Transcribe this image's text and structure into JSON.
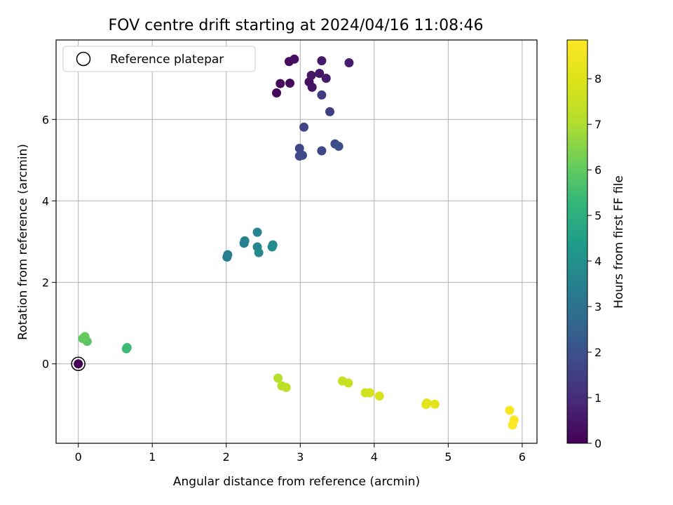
{
  "chart_data": {
    "type": "scatter",
    "title": "FOV centre drift starting at 2024/04/16 11:08:46",
    "xlabel": "Angular distance from reference (arcmin)",
    "ylabel": "Rotation from reference (arcmin)",
    "xlim": [
      -0.3,
      6.2
    ],
    "ylim": [
      -1.95,
      7.95
    ],
    "xticks": [
      0,
      1,
      2,
      3,
      4,
      5,
      6
    ],
    "yticks": [
      0,
      2,
      4,
      6
    ],
    "grid": true,
    "legend": {
      "location": "upper-left",
      "entries": [
        "Reference platepar"
      ]
    },
    "reference_point": {
      "x": 0,
      "y": 0
    },
    "colorbar": {
      "label": "Hours from first FF file",
      "colormap": "viridis",
      "range": [
        0,
        8.85
      ],
      "ticks": [
        0,
        1,
        2,
        3,
        4,
        5,
        6,
        7,
        8
      ]
    },
    "points": [
      {
        "x": 0.0,
        "y": 0.0,
        "h": 0.05
      },
      {
        "x": 2.68,
        "y": 6.65,
        "h": 0.1
      },
      {
        "x": 2.73,
        "y": 6.88,
        "h": 0.15
      },
      {
        "x": 2.86,
        "y": 6.89,
        "h": 0.2
      },
      {
        "x": 2.85,
        "y": 7.42,
        "h": 0.25
      },
      {
        "x": 2.92,
        "y": 7.48,
        "h": 0.3
      },
      {
        "x": 3.12,
        "y": 6.92,
        "h": 0.35
      },
      {
        "x": 3.16,
        "y": 6.79,
        "h": 0.4
      },
      {
        "x": 3.15,
        "y": 7.08,
        "h": 0.45
      },
      {
        "x": 3.26,
        "y": 7.13,
        "h": 0.5
      },
      {
        "x": 3.29,
        "y": 7.44,
        "h": 0.55
      },
      {
        "x": 3.35,
        "y": 7.01,
        "h": 0.6
      },
      {
        "x": 3.66,
        "y": 7.39,
        "h": 0.65
      },
      {
        "x": 3.29,
        "y": 6.6,
        "h": 1.4
      },
      {
        "x": 3.4,
        "y": 6.19,
        "h": 1.5
      },
      {
        "x": 3.05,
        "y": 5.81,
        "h": 1.6
      },
      {
        "x": 2.99,
        "y": 5.29,
        "h": 1.7
      },
      {
        "x": 3.29,
        "y": 5.23,
        "h": 1.75
      },
      {
        "x": 2.99,
        "y": 5.1,
        "h": 1.8
      },
      {
        "x": 3.03,
        "y": 5.12,
        "h": 1.85
      },
      {
        "x": 3.47,
        "y": 5.4,
        "h": 1.9
      },
      {
        "x": 3.52,
        "y": 5.34,
        "h": 1.95
      },
      {
        "x": 2.01,
        "y": 2.62,
        "h": 3.4
      },
      {
        "x": 2.02,
        "y": 2.68,
        "h": 3.45
      },
      {
        "x": 2.24,
        "y": 2.96,
        "h": 3.5
      },
      {
        "x": 2.25,
        "y": 3.02,
        "h": 3.55
      },
      {
        "x": 2.42,
        "y": 3.23,
        "h": 3.6
      },
      {
        "x": 2.42,
        "y": 2.87,
        "h": 3.7
      },
      {
        "x": 2.44,
        "y": 2.73,
        "h": 3.75
      },
      {
        "x": 2.62,
        "y": 2.87,
        "h": 3.8
      },
      {
        "x": 2.63,
        "y": 2.92,
        "h": 3.85
      },
      {
        "x": 0.65,
        "y": 0.37,
        "h": 5.4
      },
      {
        "x": 0.66,
        "y": 0.4,
        "h": 5.45
      },
      {
        "x": 0.12,
        "y": 0.55,
        "h": 5.9
      },
      {
        "x": 0.06,
        "y": 0.62,
        "h": 6.0
      },
      {
        "x": 0.09,
        "y": 0.67,
        "h": 6.05
      },
      {
        "x": 2.7,
        "y": -0.35,
        "h": 7.1
      },
      {
        "x": 2.75,
        "y": -0.54,
        "h": 7.2
      },
      {
        "x": 2.81,
        "y": -0.58,
        "h": 7.25
      },
      {
        "x": 3.57,
        "y": -0.42,
        "h": 7.5
      },
      {
        "x": 3.65,
        "y": -0.47,
        "h": 7.55
      },
      {
        "x": 3.88,
        "y": -0.71,
        "h": 7.7
      },
      {
        "x": 3.94,
        "y": -0.71,
        "h": 7.75
      },
      {
        "x": 4.07,
        "y": -0.79,
        "h": 7.85
      },
      {
        "x": 4.7,
        "y": -1.0,
        "h": 8.1
      },
      {
        "x": 4.71,
        "y": -0.96,
        "h": 8.15
      },
      {
        "x": 4.82,
        "y": -0.99,
        "h": 8.2
      },
      {
        "x": 5.83,
        "y": -1.14,
        "h": 8.7
      },
      {
        "x": 5.89,
        "y": -1.38,
        "h": 8.75
      },
      {
        "x": 5.87,
        "y": -1.5,
        "h": 8.8
      }
    ]
  }
}
